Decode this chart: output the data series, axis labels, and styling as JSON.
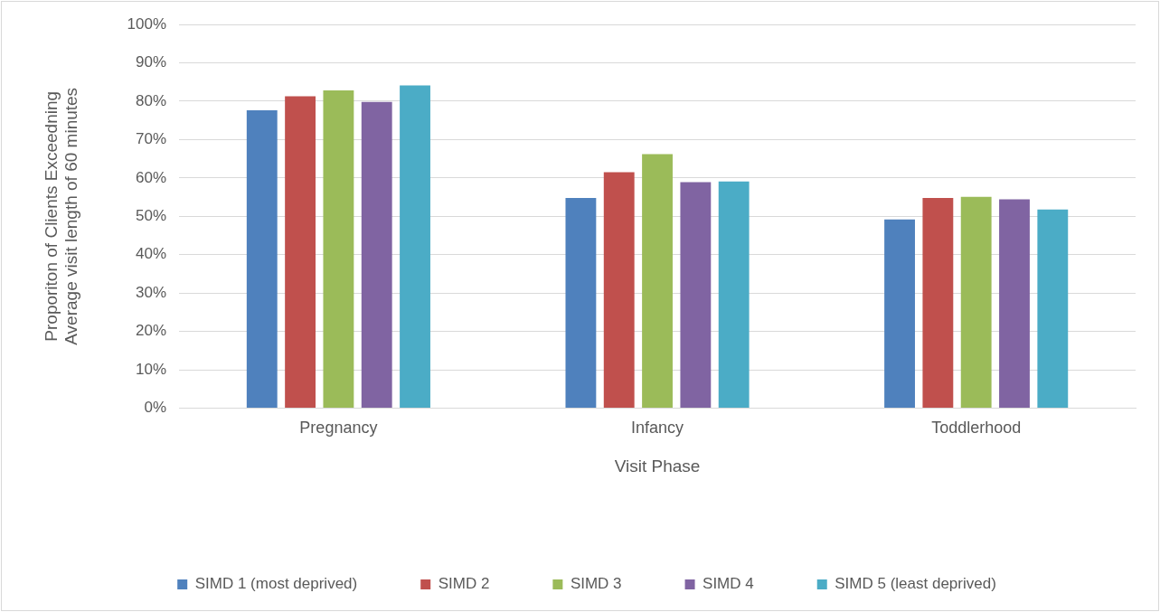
{
  "chart_data": {
    "type": "bar",
    "xlabel": "Visit Phase",
    "ylabel": "Proporiton of Clients Exceedning Average visit length of 60 minutes",
    "categories": [
      "Pregnancy",
      "Infancy",
      "Toddlerhood"
    ],
    "series": [
      {
        "name": "SIMD 1 (most deprived)",
        "color": "#4f81bd",
        "values": [
          77.6,
          54.8,
          49.2
        ]
      },
      {
        "name": "SIMD 2",
        "color": "#c0504d",
        "values": [
          81.3,
          61.5,
          54.8
        ]
      },
      {
        "name": "SIMD 3",
        "color": "#9bbb59",
        "values": [
          82.8,
          66.2,
          55.1
        ]
      },
      {
        "name": "SIMD 4",
        "color": "#8064a2",
        "values": [
          79.8,
          58.9,
          54.4
        ]
      },
      {
        "name": "SIMD 5 (least deprived)",
        "color": "#4bacc6",
        "values": [
          84.1,
          59.1,
          51.8
        ]
      }
    ],
    "ylim": [
      0,
      100
    ],
    "yticks": [
      {
        "value": 0,
        "label": "0%"
      },
      {
        "value": 10,
        "label": "10%"
      },
      {
        "value": 20,
        "label": "20%"
      },
      {
        "value": 30,
        "label": "30%"
      },
      {
        "value": 40,
        "label": "40%"
      },
      {
        "value": 50,
        "label": "50%"
      },
      {
        "value": 60,
        "label": "60%"
      },
      {
        "value": 70,
        "label": "70%"
      },
      {
        "value": 80,
        "label": "80%"
      },
      {
        "value": 90,
        "label": "90%"
      },
      {
        "value": 100,
        "label": "100%"
      }
    ],
    "grid": "y",
    "legend": "bottom"
  }
}
